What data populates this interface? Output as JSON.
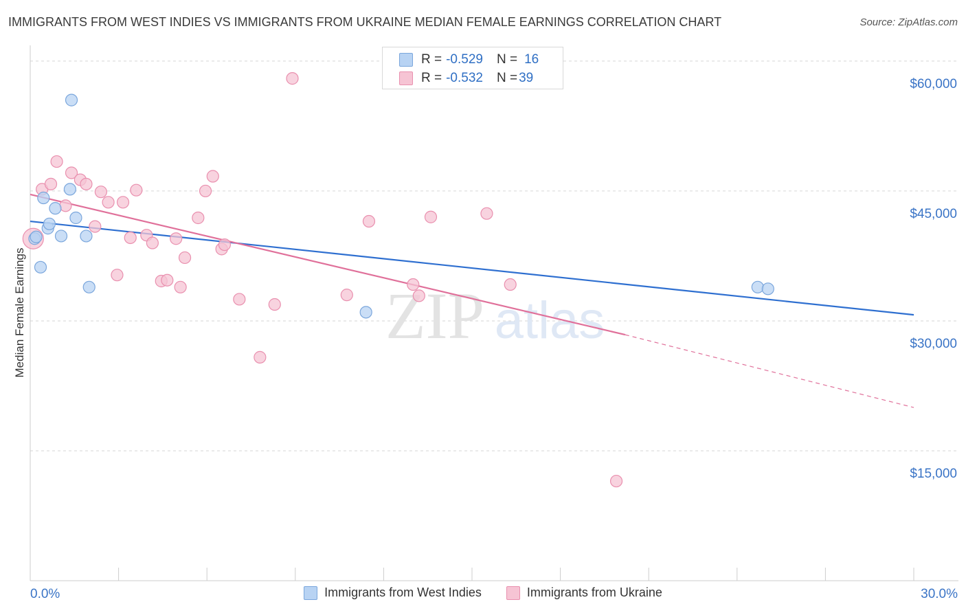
{
  "title": "IMMIGRANTS FROM WEST INDIES VS IMMIGRANTS FROM UKRAINE MEDIAN FEMALE EARNINGS CORRELATION CHART",
  "source": "Source: ZipAtlas.com",
  "watermark": {
    "zip": "ZIP",
    "atlas": "atlas"
  },
  "colors": {
    "blue_fill": "#b8d3f3",
    "blue_stroke": "#7aa6dc",
    "blue_line": "#2e6fd0",
    "pink_fill": "#f6c4d4",
    "pink_stroke": "#e98fae",
    "pink_line": "#e0709a",
    "axis_text": "#3a74c6",
    "grid": "#d6d6d6"
  },
  "stats": [
    {
      "r_label": "R = ",
      "r_value": "-0.529",
      "n_label": "N = ",
      "n_value": "16"
    },
    {
      "r_label": "R = ",
      "r_value": "-0.532",
      "n_label": "N = ",
      "n_value": "39"
    }
  ],
  "chart_data": {
    "type": "scatter",
    "title": "IMMIGRANTS FROM WEST INDIES VS IMMIGRANTS FROM UKRAINE MEDIAN FEMALE EARNINGS CORRELATION CHART",
    "xlabel": "",
    "ylabel": "Median Female Earnings",
    "xlim": [
      0,
      30
    ],
    "ylim": [
      0,
      61500
    ],
    "x_tick_labels": [
      {
        "value": 0,
        "label": "0.0%"
      },
      {
        "value": 30,
        "label": "30.0%"
      }
    ],
    "x_minor_ticks": [
      3,
      6,
      9,
      12,
      15,
      18,
      21,
      24,
      27,
      30
    ],
    "y_ticks": [
      {
        "value": 15000,
        "label": "$15,000"
      },
      {
        "value": 30000,
        "label": "$30,000"
      },
      {
        "value": 45000,
        "label": "$45,000"
      },
      {
        "value": 60000,
        "label": "$60,000"
      }
    ],
    "series": [
      {
        "name": "Immigrants from West Indies",
        "color": "blue",
        "points": [
          [
            0.15,
            39500
          ],
          [
            0.35,
            36200
          ],
          [
            0.45,
            44200
          ],
          [
            0.6,
            40700
          ],
          [
            0.65,
            41200
          ],
          [
            0.85,
            43000
          ],
          [
            1.05,
            39800
          ],
          [
            1.35,
            45200
          ],
          [
            1.4,
            55500
          ],
          [
            1.55,
            41900
          ],
          [
            1.9,
            39800
          ],
          [
            2.0,
            33900
          ],
          [
            11.4,
            31000
          ],
          [
            24.7,
            33900
          ],
          [
            25.05,
            33700
          ],
          [
            0.2,
            39700
          ]
        ],
        "trend": {
          "x": [
            0,
            30
          ],
          "y": [
            41500,
            30700
          ]
        }
      },
      {
        "name": "Immigrants from Ukraine",
        "color": "pink",
        "points": [
          [
            0.1,
            39500
          ],
          [
            0.4,
            45200
          ],
          [
            0.7,
            45800
          ],
          [
            0.9,
            48400
          ],
          [
            1.2,
            43300
          ],
          [
            1.4,
            47100
          ],
          [
            1.7,
            46300
          ],
          [
            1.9,
            45800
          ],
          [
            2.2,
            40900
          ],
          [
            2.4,
            44900
          ],
          [
            2.65,
            43700
          ],
          [
            2.95,
            35300
          ],
          [
            3.15,
            43700
          ],
          [
            3.4,
            39600
          ],
          [
            3.6,
            45100
          ],
          [
            3.95,
            39900
          ],
          [
            4.15,
            39000
          ],
          [
            4.45,
            34600
          ],
          [
            4.65,
            34700
          ],
          [
            4.95,
            39500
          ],
          [
            5.1,
            33900
          ],
          [
            5.25,
            37300
          ],
          [
            5.7,
            41900
          ],
          [
            5.95,
            45000
          ],
          [
            6.2,
            46700
          ],
          [
            6.5,
            38300
          ],
          [
            6.6,
            38800
          ],
          [
            7.1,
            32500
          ],
          [
            7.8,
            25800
          ],
          [
            8.3,
            31900
          ],
          [
            8.9,
            58000
          ],
          [
            10.75,
            33000
          ],
          [
            11.5,
            41500
          ],
          [
            13.0,
            34200
          ],
          [
            13.6,
            42000
          ],
          [
            13.2,
            32900
          ],
          [
            15.5,
            42400
          ],
          [
            16.3,
            34200
          ],
          [
            19.9,
            11500
          ]
        ],
        "trend": {
          "x": [
            0,
            20.2
          ],
          "y": [
            44600,
            28400
          ]
        },
        "trend_extension": {
          "x": [
            20.2,
            30
          ],
          "y": [
            28400,
            20000
          ]
        }
      }
    ],
    "legend": [
      "Immigrants from West Indies",
      "Immigrants from Ukraine"
    ]
  }
}
